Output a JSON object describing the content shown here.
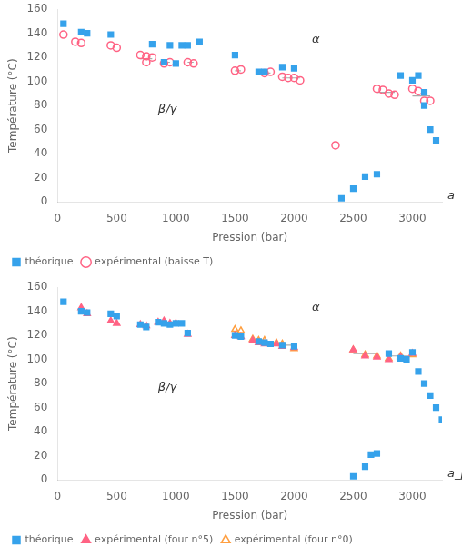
{
  "chart_data": [
    {
      "type": "scatter",
      "xlabel": "Pression (bar)",
      "ylabel": "Température (°C)",
      "xlim": [
        0,
        3250
      ],
      "ylim": [
        0,
        160
      ],
      "xticks": [
        0,
        500,
        1000,
        1500,
        2000,
        2500,
        3000
      ],
      "yticks": [
        0,
        20,
        40,
        60,
        80,
        100,
        120,
        140,
        160
      ],
      "grid": false,
      "legend": "lower left",
      "series": [
        {
          "name": "théorique",
          "marker": "square",
          "x": [
            50,
            200,
            250,
            450,
            800,
            900,
            950,
            1000,
            1050,
            1100,
            1200,
            1500,
            1700,
            1750,
            1900,
            2000,
            2400,
            2500,
            2600,
            2700,
            2900,
            3000,
            3050,
            3100,
            3100,
            3150,
            3200
          ],
          "values": [
            148,
            141,
            140,
            139,
            131,
            116,
            130,
            115,
            130,
            130,
            133,
            122,
            108,
            108,
            112,
            111,
            3,
            11,
            21,
            23,
            105,
            101,
            105,
            91,
            80,
            60,
            51
          ]
        },
        {
          "name": "expérimental\n(baisse T)",
          "marker": "circle-open",
          "x": [
            50,
            150,
            200,
            450,
            500,
            700,
            750,
            800,
            750,
            900,
            950,
            1100,
            1150,
            1500,
            1550,
            1750,
            1800,
            1900,
            1950,
            2000,
            2050,
            2350,
            2700,
            2750,
            2800,
            2850,
            3000,
            3050,
            3100,
            3150
          ],
          "values": [
            139,
            133,
            132,
            130,
            128,
            122,
            121,
            120,
            116,
            115,
            116,
            116,
            115,
            109,
            110,
            107,
            108,
            104,
            103,
            103,
            101,
            47,
            94,
            93,
            90,
            89,
            94,
            92,
            84,
            84
          ]
        },
        {
          "type": "line",
          "color": "#aaaaaa",
          "segments": [
            {
              "x": [
                700,
                800
              ],
              "y": 119
            },
            {
              "x": [
                900,
                950
              ],
              "y": 116
            },
            {
              "x": [
                1100,
                1150
              ],
              "y": 116
            },
            {
              "x": [
                1500,
                1550
              ],
              "y": 109
            },
            {
              "x": [
                1750,
                1800
              ],
              "y": 107
            },
            {
              "x": [
                1900,
                2050
              ],
              "y": 103
            },
            {
              "x": [
                2700,
                2850
              ],
              "y": 91
            },
            {
              "x": [
                3000,
                3150
              ],
              "y": 88
            }
          ]
        }
      ],
      "annotations": [
        {
          "text": "α",
          "x": 2150,
          "y": 130
        },
        {
          "text": "β/γ",
          "x": 850,
          "y": 72
        },
        {
          "text": "a"
        }
      ]
    },
    {
      "type": "scatter",
      "xlabel": "Pression (bar)",
      "ylabel": "Température (°C)",
      "xlim": [
        0,
        3250
      ],
      "ylim": [
        0,
        160
      ],
      "xticks": [
        0,
        500,
        1000,
        1500,
        2000,
        2500,
        3000
      ],
      "yticks": [
        0,
        20,
        40,
        60,
        80,
        100,
        120,
        140,
        160
      ],
      "grid": false,
      "legend": "lower left",
      "series": [
        {
          "name": "théorique",
          "marker": "square",
          "x": [
            50,
            200,
            250,
            450,
            500,
            700,
            750,
            850,
            900,
            950,
            1000,
            1050,
            1100,
            1500,
            1550,
            1700,
            1750,
            1800,
            1900,
            2000,
            2500,
            2600,
            2650,
            2700,
            2800,
            2900,
            2950,
            3000,
            3050,
            3100,
            3150,
            3200,
            3250
          ],
          "values": [
            148,
            140,
            139,
            138,
            136,
            129,
            127,
            131,
            130,
            129,
            130,
            130,
            122,
            120,
            119,
            115,
            114,
            113,
            112,
            111,
            3,
            11,
            21,
            22,
            105,
            101,
            100,
            106,
            90,
            80,
            70,
            60,
            50
          ]
        },
        {
          "name": "expérimental\n(four n°5)",
          "marker": "triangle",
          "x": [
            200,
            250,
            450,
            500,
            700,
            750,
            850,
            900,
            950,
            1000,
            1100,
            1500,
            1550,
            1650,
            1700,
            1750,
            1850,
            1900,
            2000,
            2500,
            2600,
            2700,
            2800,
            2900,
            3000
          ],
          "values": [
            143,
            138,
            132,
            130,
            129,
            128,
            131,
            132,
            130,
            130,
            121,
            120,
            119,
            116,
            114,
            113,
            113,
            111,
            110,
            108,
            103,
            102,
            100,
            102,
            105
          ]
        },
        {
          "name": "expérimental\n(four n°0)",
          "marker": "triangle-open",
          "x": [
            1500,
            1550,
            1650,
            1700,
            1750,
            1850,
            1900,
            2000,
            2500,
            2600,
            2700,
            2800,
            2900,
            3000
          ],
          "values": [
            125,
            124,
            117,
            116,
            116,
            114,
            113,
            109,
            108,
            104,
            103,
            101,
            103,
            104
          ]
        },
        {
          "type": "line",
          "color": "#aaaaaa",
          "segments": [
            {
              "x": [
                850,
                1000
              ],
              "y": 131
            },
            {
              "x": [
                1500,
                1550
              ],
              "y": 122
            },
            {
              "x": [
                1650,
                1750
              ],
              "y": 115
            },
            {
              "x": [
                1850,
                2000
              ],
              "y": 112
            },
            {
              "x": [
                2500,
                2700
              ],
              "y": 105
            },
            {
              "x": [
                2800,
                3000
              ],
              "y": 103
            }
          ]
        }
      ],
      "annotations": [
        {
          "text": "α",
          "x": 2150,
          "y": 138
        },
        {
          "text": "β/γ",
          "x": 850,
          "y": 72
        },
        {
          "text": "a_placeholder_removed"
        }
      ]
    }
  ]
}
